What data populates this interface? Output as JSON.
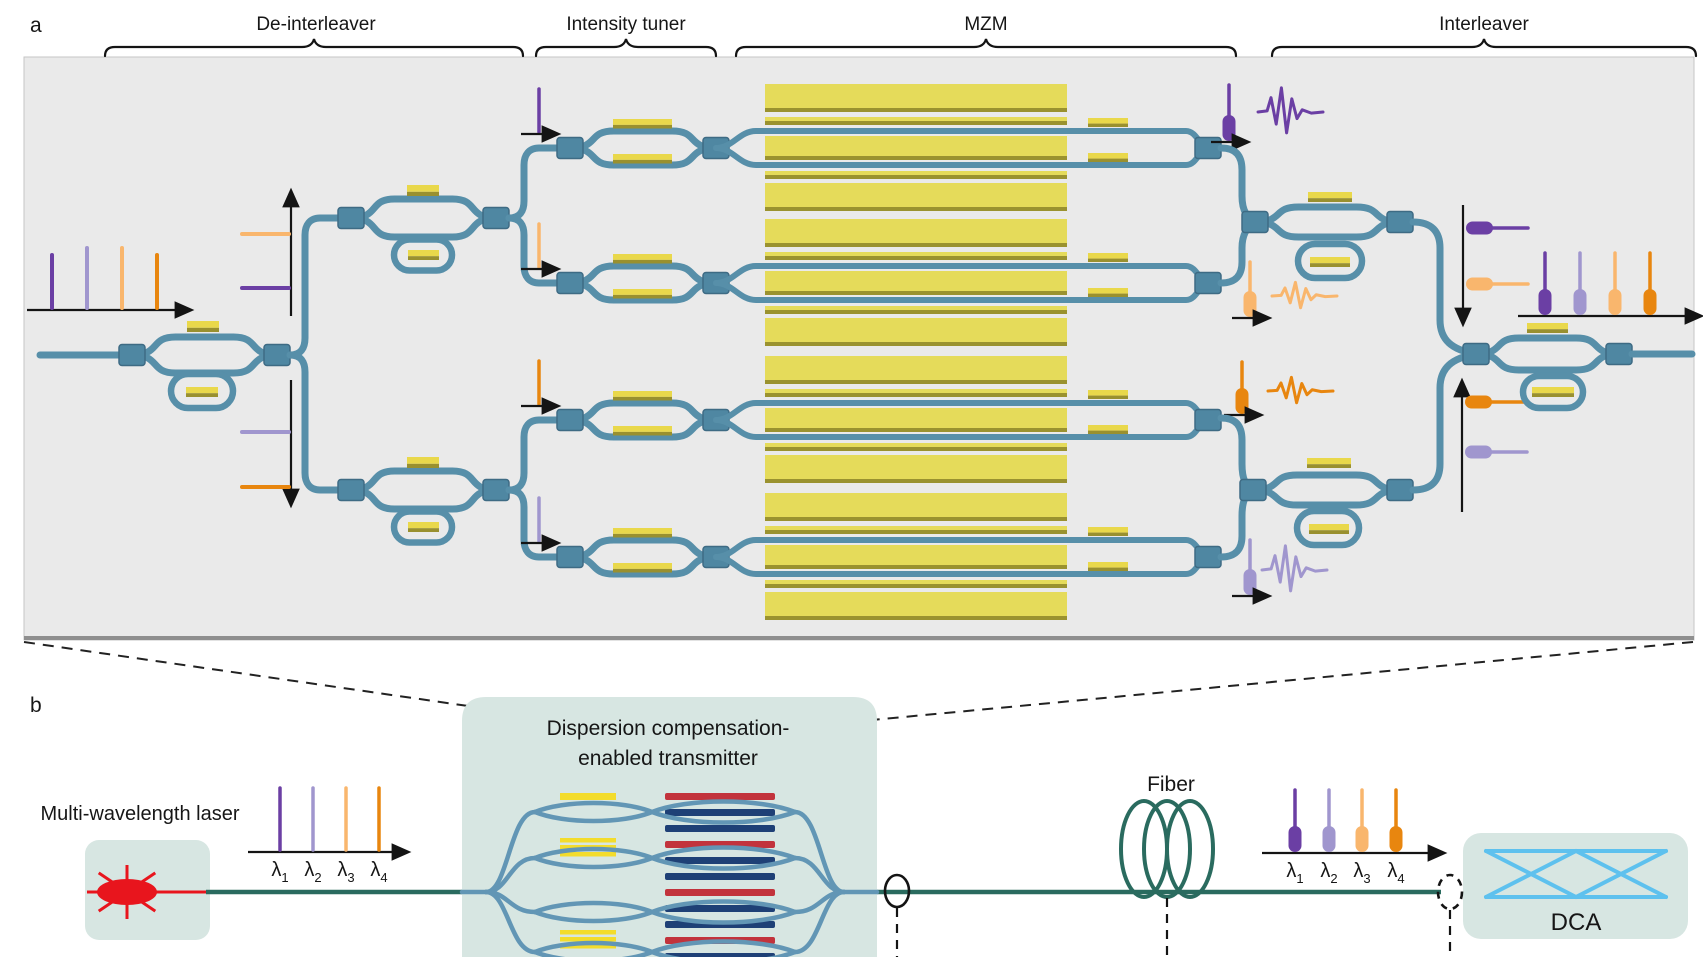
{
  "figure": {
    "panel_a_label": "a",
    "panel_b_label": "b",
    "sections": [
      {
        "label": "De-interleaver"
      },
      {
        "label": "Intensity tuner"
      },
      {
        "label": "MZM"
      },
      {
        "label": "Interleaver"
      }
    ],
    "panel_b": {
      "laser_label": "Multi-wavelength laser",
      "transmitter_label_line1": "Dispersion compensation-",
      "transmitter_label_line2": "enabled transmitter",
      "fiber_label": "Fiber",
      "dca_label": "DCA"
    },
    "wavelengths": [
      {
        "symbol": "λ",
        "sub": "1",
        "color": "lambda1"
      },
      {
        "symbol": "λ",
        "sub": "2",
        "color": "lambda2"
      },
      {
        "symbol": "λ",
        "sub": "3",
        "color": "lambda3"
      },
      {
        "symbol": "λ",
        "sub": "4",
        "color": "lambda4"
      }
    ],
    "routing": {
      "input_spectrum": [
        "lambda1",
        "lambda2",
        "lambda3",
        "lambda4"
      ],
      "deinterleaver_up_axis": [
        "lambda3",
        "lambda1"
      ],
      "deinterleaver_down_axis": [
        "lambda2",
        "lambda4"
      ],
      "channels": [
        "lambda1",
        "lambda3",
        "lambda4",
        "lambda2"
      ],
      "interleaver_down_axis": [
        "lambda1",
        "lambda3"
      ],
      "interleaver_up_axis": [
        "lambda4",
        "lambda2"
      ],
      "output_spectrum": [
        "lambda1",
        "lambda2",
        "lambda3",
        "lambda4"
      ]
    },
    "colors": {
      "panel_bg": "#eaeaea",
      "panel_edge": "#8f8f8f",
      "axis": "#141414",
      "waveguide": "#578fa9",
      "square": "#4f87a2",
      "square_edge": "#3e6b84",
      "heater_yellow": "#e9d84b",
      "heater_shadow": "#99902f",
      "mzm_block": "#e5db5a",
      "mzm_block_edge": "#9a922f",
      "lambda1": "#6b3fa4",
      "lambda2": "#a096ce",
      "lambda3": "#f9b66d",
      "lambda4": "#e8860f",
      "box_teal": "#d7e6e2",
      "fiber": "#2a6b5f",
      "laser_red": "#e8151d",
      "electrode_red": "#c2333c",
      "electrode_navy": "#1e4076",
      "transmitter_wg": "#6296b5",
      "transmitter_yellow": "#f3dc2c",
      "eye_blue": "#5ec1ee"
    }
  }
}
